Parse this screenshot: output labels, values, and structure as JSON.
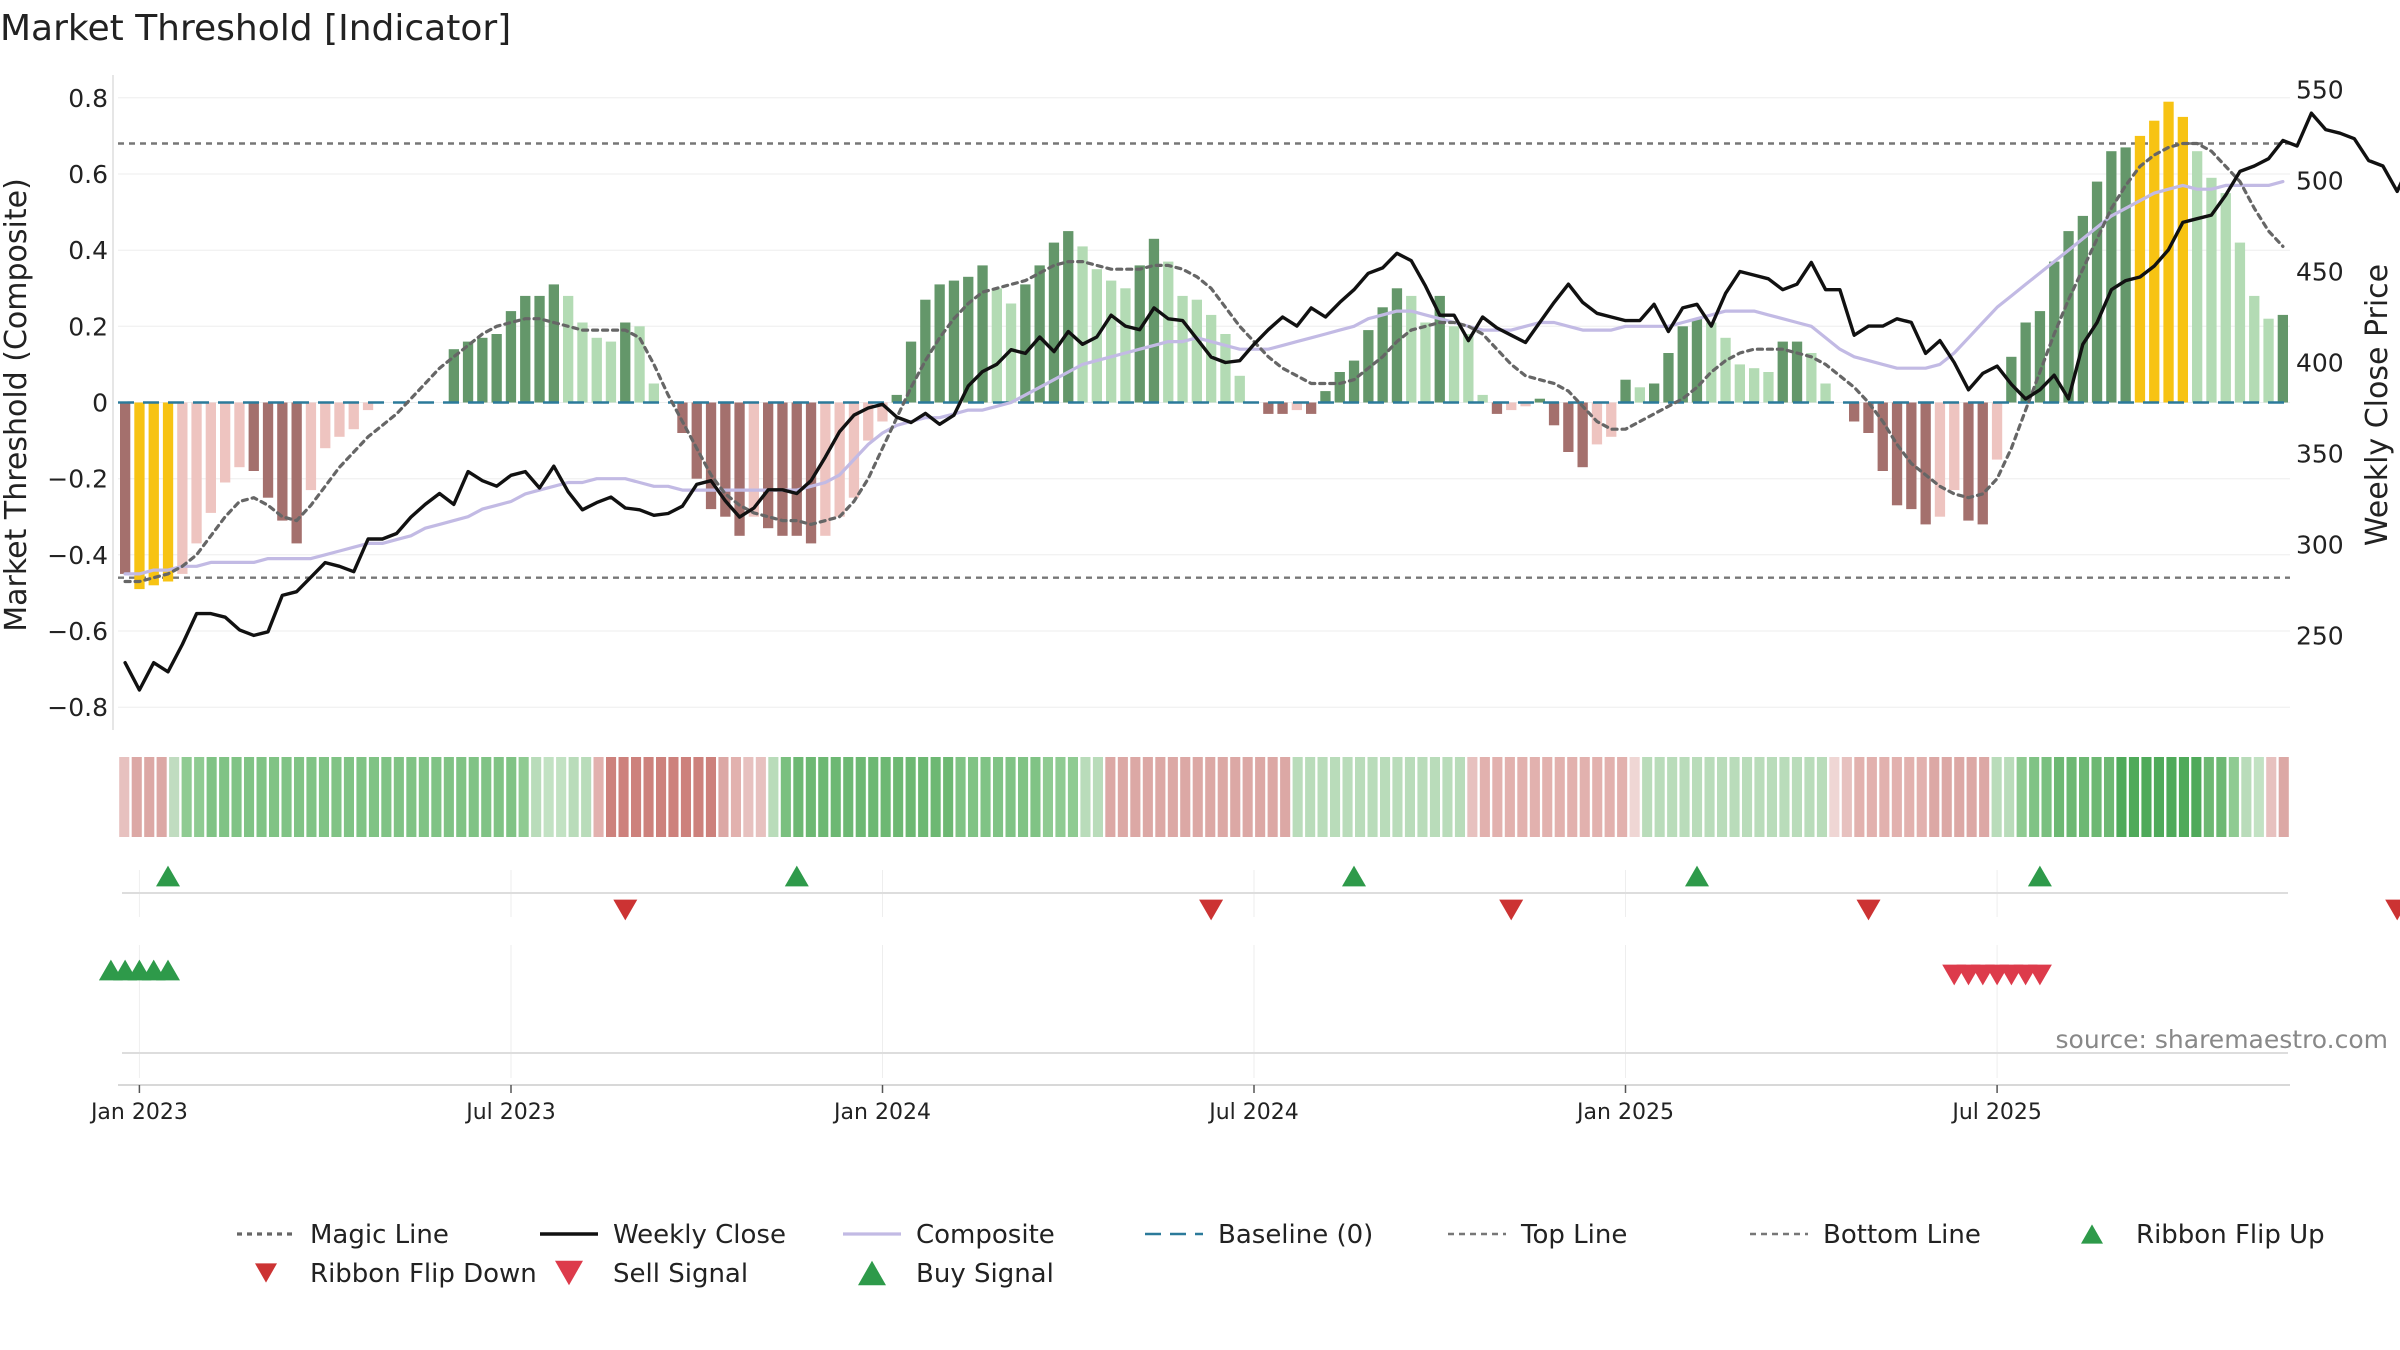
{
  "chart_data": {
    "type": "bar",
    "title": "Market Threshold [Indicator]",
    "ylabel_left": "Market Threshold (Composite)",
    "ylabel_right": "Weekly Close Price",
    "source": "source: sharemaestro.com",
    "left_ylim": [
      -0.86,
      0.86
    ],
    "right_ylim": [
      198,
      558
    ],
    "left_ticks": [
      {
        "value": 0.8,
        "label": "0.8"
      },
      {
        "value": 0.6,
        "label": "0.6"
      },
      {
        "value": 0.4,
        "label": "0.4"
      },
      {
        "value": 0.2,
        "label": "0.2"
      },
      {
        "value": 0,
        "label": "0"
      },
      {
        "value": -0.2,
        "label": "−0.2"
      },
      {
        "value": -0.4,
        "label": "−0.4"
      },
      {
        "value": -0.6,
        "label": "−0.6"
      },
      {
        "value": -0.8,
        "label": "−0.8"
      }
    ],
    "right_ticks": [
      {
        "value": 550,
        "label": "550"
      },
      {
        "value": 500,
        "label": "500"
      },
      {
        "value": 450,
        "label": "450"
      },
      {
        "value": 400,
        "label": "400"
      },
      {
        "value": 350,
        "label": "350"
      },
      {
        "value": 300,
        "label": "300"
      },
      {
        "value": 250,
        "label": "250"
      }
    ],
    "x_ticks": [
      {
        "week": 1,
        "label": "Jan 2023"
      },
      {
        "week": 27,
        "label": "Jul 2023"
      },
      {
        "week": 53,
        "label": "Jan 2024"
      },
      {
        "week": 79,
        "label": "Jul 2024"
      },
      {
        "week": 105,
        "label": "Jan 2025"
      },
      {
        "week": 131,
        "label": "Jul 2025"
      }
    ],
    "top_line": 0.68,
    "bottom_line": -0.46,
    "histogram": [
      -0.45,
      -0.49,
      -0.48,
      -0.47,
      -0.45,
      -0.37,
      -0.29,
      -0.21,
      -0.17,
      -0.18,
      -0.25,
      -0.31,
      -0.37,
      -0.23,
      -0.12,
      -0.09,
      -0.07,
      -0.02,
      0,
      0,
      0,
      0,
      0,
      0.14,
      0.16,
      0.17,
      0.18,
      0.24,
      0.28,
      0.28,
      0.31,
      0.28,
      0.21,
      0.17,
      0.16,
      0.21,
      0.2,
      0.05,
      0,
      -0.08,
      -0.2,
      -0.28,
      -0.3,
      -0.35,
      -0.3,
      -0.33,
      -0.35,
      -0.35,
      -0.37,
      -0.35,
      -0.3,
      -0.25,
      -0.1,
      -0.05,
      0.02,
      0.16,
      0.27,
      0.31,
      0.32,
      0.33,
      0.36,
      0.3,
      0.26,
      0.31,
      0.36,
      0.42,
      0.45,
      0.41,
      0.35,
      0.32,
      0.3,
      0.36,
      0.43,
      0.37,
      0.28,
      0.27,
      0.23,
      0.18,
      0.07,
      0.0,
      -0.03,
      -0.03,
      -0.02,
      -0.03,
      0.03,
      0.08,
      0.11,
      0.19,
      0.25,
      0.3,
      0.28,
      0.21,
      0.28,
      0.2,
      0.18,
      0.02,
      -0.03,
      -0.02,
      -0.01,
      0.01,
      -0.06,
      -0.13,
      -0.17,
      -0.11,
      -0.09,
      0.06,
      0.04,
      0.05,
      0.13,
      0.2,
      0.22,
      0.21,
      0.17,
      0.1,
      0.09,
      0.08,
      0.16,
      0.16,
      0.13,
      0.05,
      0,
      -0.05,
      -0.08,
      -0.18,
      -0.27,
      -0.28,
      -0.32,
      -0.3,
      -0.23,
      -0.31,
      -0.32,
      -0.15,
      0.12,
      0.21,
      0.24,
      0.37,
      0.45,
      0.49,
      0.58,
      0.66,
      0.67,
      0.7,
      0.74,
      0.79,
      0.75,
      0.66,
      0.59,
      0.55,
      0.42,
      0.28,
      0.22,
      0.23
    ],
    "magic_line": [
      -0.47,
      -0.47,
      -0.46,
      -0.45,
      -0.43,
      -0.4,
      -0.35,
      -0.3,
      -0.26,
      -0.25,
      -0.27,
      -0.3,
      -0.31,
      -0.27,
      -0.22,
      -0.17,
      -0.13,
      -0.09,
      -0.06,
      -0.03,
      0.01,
      0.05,
      0.09,
      0.12,
      0.15,
      0.18,
      0.2,
      0.21,
      0.22,
      0.22,
      0.21,
      0.2,
      0.19,
      0.19,
      0.19,
      0.19,
      0.17,
      0.1,
      0.02,
      -0.05,
      -0.12,
      -0.19,
      -0.24,
      -0.27,
      -0.29,
      -0.3,
      -0.31,
      -0.31,
      -0.32,
      -0.31,
      -0.3,
      -0.26,
      -0.2,
      -0.12,
      -0.04,
      0.04,
      0.11,
      0.17,
      0.22,
      0.26,
      0.29,
      0.3,
      0.31,
      0.32,
      0.34,
      0.36,
      0.37,
      0.37,
      0.36,
      0.35,
      0.35,
      0.35,
      0.36,
      0.36,
      0.35,
      0.33,
      0.3,
      0.25,
      0.2,
      0.16,
      0.12,
      0.09,
      0.07,
      0.05,
      0.05,
      0.05,
      0.06,
      0.09,
      0.12,
      0.16,
      0.19,
      0.2,
      0.21,
      0.21,
      0.2,
      0.18,
      0.14,
      0.1,
      0.07,
      0.06,
      0.05,
      0.03,
      -0.01,
      -0.05,
      -0.07,
      -0.07,
      -0.05,
      -0.03,
      -0.01,
      0.01,
      0.04,
      0.08,
      0.11,
      0.13,
      0.14,
      0.14,
      0.14,
      0.13,
      0.12,
      0.1,
      0.07,
      0.04,
      0.0,
      -0.05,
      -0.11,
      -0.16,
      -0.19,
      -0.22,
      -0.24,
      -0.25,
      -0.24,
      -0.2,
      -0.12,
      -0.02,
      0.08,
      0.18,
      0.27,
      0.35,
      0.43,
      0.51,
      0.57,
      0.62,
      0.65,
      0.67,
      0.68,
      0.68,
      0.66,
      0.62,
      0.58,
      0.51,
      0.45,
      0.41
    ],
    "composite": [
      -0.45,
      -0.45,
      -0.44,
      -0.44,
      -0.43,
      -0.43,
      -0.42,
      -0.42,
      -0.42,
      -0.42,
      -0.41,
      -0.41,
      -0.41,
      -0.41,
      -0.4,
      -0.39,
      -0.38,
      -0.37,
      -0.37,
      -0.36,
      -0.35,
      -0.33,
      -0.32,
      -0.31,
      -0.3,
      -0.28,
      -0.27,
      -0.26,
      -0.24,
      -0.23,
      -0.22,
      -0.21,
      -0.21,
      -0.2,
      -0.2,
      -0.2,
      -0.21,
      -0.22,
      -0.22,
      -0.23,
      -0.23,
      -0.23,
      -0.23,
      -0.23,
      -0.23,
      -0.23,
      -0.23,
      -0.23,
      -0.22,
      -0.21,
      -0.19,
      -0.15,
      -0.11,
      -0.08,
      -0.06,
      -0.05,
      -0.04,
      -0.04,
      -0.03,
      -0.02,
      -0.02,
      -0.01,
      0.0,
      0.02,
      0.04,
      0.06,
      0.08,
      0.1,
      0.11,
      0.12,
      0.13,
      0.14,
      0.15,
      0.16,
      0.16,
      0.17,
      0.16,
      0.15,
      0.14,
      0.14,
      0.14,
      0.15,
      0.16,
      0.17,
      0.18,
      0.19,
      0.2,
      0.22,
      0.23,
      0.24,
      0.24,
      0.23,
      0.22,
      0.21,
      0.2,
      0.19,
      0.19,
      0.19,
      0.2,
      0.21,
      0.21,
      0.2,
      0.19,
      0.19,
      0.19,
      0.2,
      0.2,
      0.2,
      0.2,
      0.21,
      0.22,
      0.23,
      0.24,
      0.24,
      0.24,
      0.23,
      0.22,
      0.21,
      0.2,
      0.17,
      0.14,
      0.12,
      0.11,
      0.1,
      0.09,
      0.09,
      0.09,
      0.1,
      0.13,
      0.17,
      0.21,
      0.25,
      0.28,
      0.31,
      0.34,
      0.37,
      0.4,
      0.43,
      0.46,
      0.49,
      0.51,
      0.53,
      0.55,
      0.56,
      0.57,
      0.56,
      0.56,
      0.57,
      0.57,
      0.57,
      0.57,
      0.58
    ],
    "weekly_close": [
      235,
      220,
      235,
      230,
      245,
      262,
      262,
      260,
      253,
      250,
      252,
      272,
      274,
      282,
      290,
      288,
      285,
      303,
      303,
      306,
      315,
      322,
      328,
      322,
      340,
      335,
      332,
      338,
      340,
      331,
      343,
      329,
      319,
      323,
      326,
      320,
      319,
      316,
      317,
      321,
      333,
      335,
      324,
      315,
      320,
      330,
      330,
      328,
      335,
      348,
      362,
      371,
      375,
      377,
      370,
      367,
      372,
      366,
      371,
      387,
      395,
      399,
      407,
      405,
      414,
      406,
      417,
      410,
      414,
      426,
      420,
      418,
      430,
      424,
      423,
      413,
      403,
      400,
      401,
      410,
      418,
      425,
      420,
      430,
      425,
      433,
      440,
      449,
      452,
      460,
      456,
      442,
      426,
      426,
      412,
      425,
      419,
      415,
      411,
      422,
      433,
      443,
      433,
      427,
      425,
      423,
      423,
      432,
      417,
      430,
      432,
      420,
      438,
      450,
      448,
      446,
      440,
      443,
      455,
      440,
      440,
      415,
      420,
      420,
      424,
      422,
      405,
      412,
      400,
      385,
      394,
      398,
      388,
      380,
      385,
      393,
      380,
      410,
      422,
      440,
      445,
      447,
      453,
      462,
      477,
      479,
      481,
      492,
      505,
      508,
      512,
      522,
      519,
      537,
      528,
      526,
      523,
      511,
      508,
      494,
      511,
      518
    ]
  },
  "ribbon": {
    "flip_ups": [
      3,
      47,
      86,
      110,
      134
    ],
    "flip_downs": [
      35,
      76,
      97,
      122,
      159
    ],
    "buy_signals": [
      -1,
      0,
      1,
      2,
      3
    ],
    "sell_signals": [
      128,
      129,
      130,
      131,
      132,
      133,
      134
    ],
    "colors": [
      "#e7c1bf",
      "#dca8a5",
      "#dca8a5",
      "#dca8a5",
      "#c0dcc0",
      "#8fcb92",
      "#8fcb92",
      "#80c385",
      "#80c385",
      "#80c385",
      "#80c385",
      "#80c385",
      "#80c385",
      "#80c385",
      "#80c385",
      "#80c385",
      "#80c385",
      "#80c385",
      "#80c385",
      "#80c385",
      "#80c385",
      "#80c385",
      "#80c385",
      "#80c385",
      "#80c385",
      "#80c385",
      "#80c385",
      "#80c385",
      "#80c385",
      "#80c385",
      "#80c385",
      "#80c385",
      "#8fcb92",
      "#b9dcba",
      "#c2e2c3",
      "#c2e2c3",
      "#b9dcba",
      "#b9dcba",
      "#e2b1ae",
      "#cd817c",
      "#cd817c",
      "#cd817c",
      "#cd817c",
      "#cd817c",
      "#cd817c",
      "#cd817c",
      "#cd817c",
      "#cd817c",
      "#dca8a5",
      "#e2b1ae",
      "#e7c1bf",
      "#e7c1bf",
      "#b9dcba",
      "#7ac07f",
      "#6db873",
      "#6db873",
      "#6db873",
      "#6db873",
      "#6db873",
      "#6db873",
      "#6db873",
      "#6db873",
      "#6db873",
      "#6db873",
      "#6db873",
      "#6db873",
      "#6db873",
      "#80c385",
      "#80c385",
      "#80c385",
      "#80c385",
      "#80c385",
      "#80c385",
      "#80c385",
      "#8fcb92",
      "#8fcb92",
      "#8fcb92",
      "#b9dcba",
      "#b9dcba",
      "#dca8a5",
      "#dca8a5",
      "#dca8a5",
      "#dca8a5",
      "#dca8a5",
      "#dca8a5",
      "#dca8a5",
      "#dca8a5",
      "#dca8a5",
      "#dca8a5",
      "#dca8a5",
      "#dca8a5",
      "#dca8a5",
      "#dca8a5",
      "#dca8a5",
      "#b9dcba",
      "#b9dcba",
      "#b9dcba",
      "#b9dcba",
      "#b9dcba",
      "#b9dcba",
      "#b9dcba",
      "#b9dcba",
      "#b9dcba",
      "#b9dcba",
      "#b9dcba",
      "#b9dcba",
      "#b9dcba",
      "#b9dcba",
      "#e7c1bf",
      "#e2b1ae",
      "#e2b1ae",
      "#e2b1ae",
      "#e2b1ae",
      "#e2b1ae",
      "#e2b1ae",
      "#e2b1ae",
      "#e2b1ae",
      "#e2b1ae",
      "#e2b1ae",
      "#e2b1ae",
      "#e2b1ae",
      "#efd6d4",
      "#b9dcba",
      "#b9dcba",
      "#b9dcba",
      "#b9dcba",
      "#b9dcba",
      "#b9dcba",
      "#b9dcba",
      "#b9dcba",
      "#b9dcba",
      "#b9dcba",
      "#b9dcba",
      "#b9dcba",
      "#b9dcba",
      "#b9dcba",
      "#b9dcba",
      "#efd6d4",
      "#e7c1bf",
      "#e2b1ae",
      "#e2b1ae",
      "#e2b1ae",
      "#e2b1ae",
      "#e2b1ae",
      "#e2b1ae",
      "#dca8a5",
      "#dca8a5",
      "#dca8a5",
      "#dca8a5",
      "#dca8a5",
      "#b9dcba",
      "#b9dcba",
      "#8fcb92",
      "#80c385",
      "#7ac07f",
      "#6db873",
      "#6db873",
      "#6db873",
      "#6db873",
      "#6db873",
      "#4faa5a",
      "#4faa5a",
      "#4faa5a",
      "#4faa5a",
      "#4faa5a",
      "#4faa5a",
      "#4faa5a",
      "#6db873",
      "#6db873",
      "#8fcb92",
      "#b9dcba",
      "#c2e2c3",
      "#e7c1bf",
      "#dca8a5"
    ]
  },
  "legend": [
    {
      "label": "Magic Line",
      "style": "magic"
    },
    {
      "label": "Weekly Close",
      "style": "close"
    },
    {
      "label": "Composite",
      "style": "composite"
    },
    {
      "label": "Baseline (0)",
      "style": "baseline"
    },
    {
      "label": "Top Line",
      "style": "topline"
    },
    {
      "label": "Bottom Line",
      "style": "bottomline"
    },
    {
      "label": "Ribbon Flip Up",
      "style": "flipup"
    },
    {
      "label": "Ribbon Flip Down",
      "style": "flipdown"
    },
    {
      "label": "Sell Signal",
      "style": "sell"
    },
    {
      "label": "Buy Signal",
      "style": "buy"
    }
  ],
  "colors": {
    "neg_light": "#eec4c0",
    "neg_dark": "#a4706d",
    "pos_light": "#b3dbb4",
    "pos_dark": "#64976a",
    "extreme": "#f7c313",
    "magic_line": "#666666",
    "weekly_close": "#111111",
    "composite": "#c2bae4",
    "baseline": "#2b7a9a",
    "guide": "#777777",
    "flip_up": "#2e9a4a",
    "flip_down": "#cc3333",
    "buy": "#2e9a4a",
    "sell": "#dd3b4b"
  }
}
